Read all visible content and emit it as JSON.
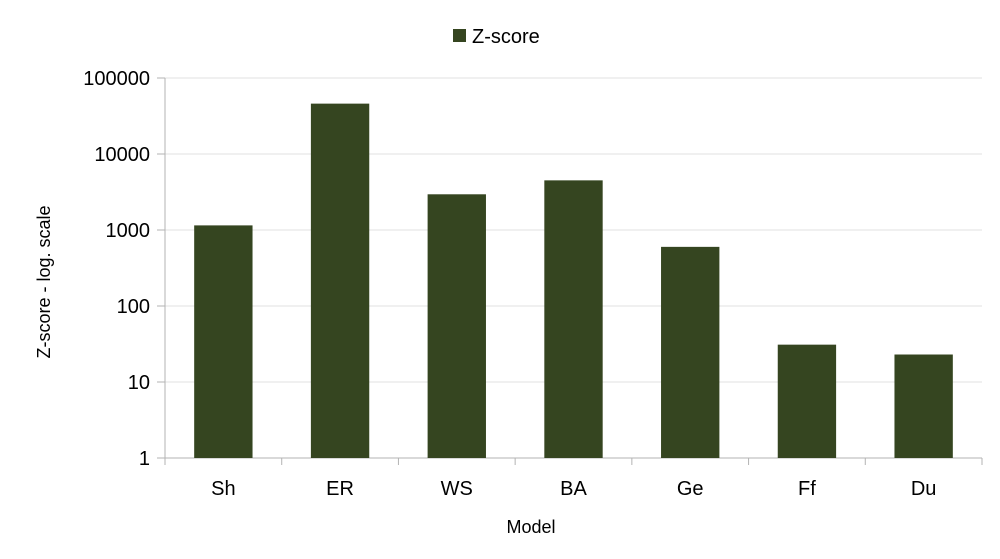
{
  "chart_data": {
    "type": "bar",
    "scale": "log",
    "categories": [
      "Sh",
      "ER",
      "WS",
      "BA",
      "Ge",
      "Ff",
      "Du"
    ],
    "series": [
      {
        "name": "Z-score",
        "values": [
          1150,
          46000,
          2950,
          4500,
          600,
          31,
          23
        ]
      }
    ],
    "xlabel": "Model",
    "ylabel": "Z-score - log. scale",
    "ylim": [
      1,
      100000
    ],
    "yticks": [
      "1",
      "10",
      "100",
      "1000",
      "10000",
      "100000"
    ],
    "grid": true,
    "legend_position": "top-center",
    "colors": {
      "bar": "#354520",
      "grid": "#e0e0e0",
      "axis": "#b3b3b3"
    }
  }
}
